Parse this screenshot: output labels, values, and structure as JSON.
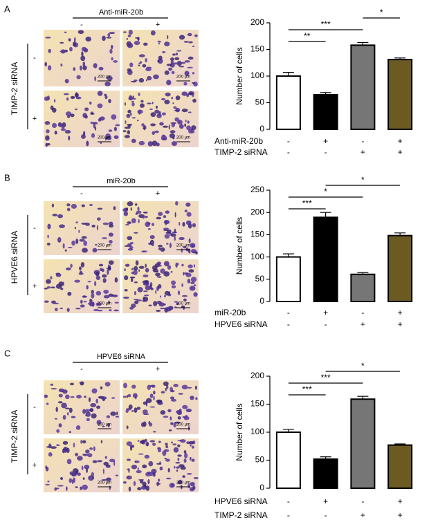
{
  "chart_data": [
    {
      "type": "bar",
      "panel": "A",
      "image_header": "Anti-miR-20b",
      "image_col_labels": [
        "-",
        "+"
      ],
      "image_row_title": "TIMP-2 siRNA",
      "image_row_labels": [
        "-",
        "+"
      ],
      "scale_bar": "200 μm",
      "y_label": "Number of cells",
      "ylim": [
        0,
        200
      ],
      "yticks": [
        0,
        50,
        100,
        150,
        200
      ],
      "values": [
        100,
        65,
        158,
        131
      ],
      "errors": [
        7,
        4,
        5,
        3
      ],
      "colors": [
        "#ffffff",
        "#000000",
        "#767676",
        "#6b5a22"
      ],
      "factors": [
        {
          "name": "Anti-miR-20b",
          "levels": [
            "-",
            "+",
            "-",
            "+"
          ]
        },
        {
          "name": "TIMP-2 siRNA",
          "levels": [
            "-",
            "-",
            "+",
            "+"
          ]
        }
      ],
      "significance": [
        {
          "text": "**",
          "between": [
            0,
            1
          ]
        },
        {
          "text": "***",
          "between": [
            0,
            2
          ]
        },
        {
          "text": "*",
          "between": [
            2,
            3
          ]
        }
      ]
    },
    {
      "type": "bar",
      "panel": "B",
      "image_header": "miR-20b",
      "image_col_labels": [
        "-",
        "+"
      ],
      "image_row_title": "HPVE6 siRNA",
      "image_row_labels": [
        "-",
        "+"
      ],
      "scale_bar": "200 μm",
      "y_label": "Number of cells",
      "ylim": [
        0,
        250
      ],
      "yticks": [
        0,
        50,
        100,
        150,
        200,
        250
      ],
      "values": [
        100,
        189,
        61,
        148
      ],
      "errors": [
        7,
        11,
        4,
        6
      ],
      "colors": [
        "#ffffff",
        "#000000",
        "#767676",
        "#6b5a22"
      ],
      "factors": [
        {
          "name": "miR-20b",
          "levels": [
            "-",
            "+",
            "-",
            "+"
          ]
        },
        {
          "name": "HPVE6 siRNA",
          "levels": [
            "-",
            "-",
            "+",
            "+"
          ]
        }
      ],
      "significance": [
        {
          "text": "***",
          "between": [
            0,
            1
          ]
        },
        {
          "text": "*",
          "between": [
            0,
            2
          ]
        },
        {
          "text": "*",
          "between": [
            1,
            3
          ]
        }
      ]
    },
    {
      "type": "bar",
      "panel": "C",
      "image_header": "HPVE6 siRNA",
      "image_col_labels": [
        "-",
        "+"
      ],
      "image_row_title": "TIMP-2 siRNA",
      "image_row_labels": [
        "-",
        "+"
      ],
      "scale_bar": "200 μm",
      "y_label": "Number of cells",
      "ylim": [
        0,
        200
      ],
      "yticks": [
        0,
        50,
        100,
        150,
        200
      ],
      "values": [
        100,
        52,
        159,
        77
      ],
      "errors": [
        5,
        4,
        5,
        2
      ],
      "colors": [
        "#ffffff",
        "#000000",
        "#767676",
        "#6b5a22"
      ],
      "factors": [
        {
          "name": "HPVE6 siRNA",
          "levels": [
            "-",
            "+",
            "-",
            "+"
          ]
        },
        {
          "name": "TIMP-2 siRNA",
          "levels": [
            "-",
            "-",
            "+",
            "+"
          ]
        }
      ],
      "significance": [
        {
          "text": "***",
          "between": [
            0,
            1
          ]
        },
        {
          "text": "***",
          "between": [
            0,
            2
          ]
        },
        {
          "text": "*",
          "between": [
            1,
            3
          ]
        }
      ]
    }
  ]
}
